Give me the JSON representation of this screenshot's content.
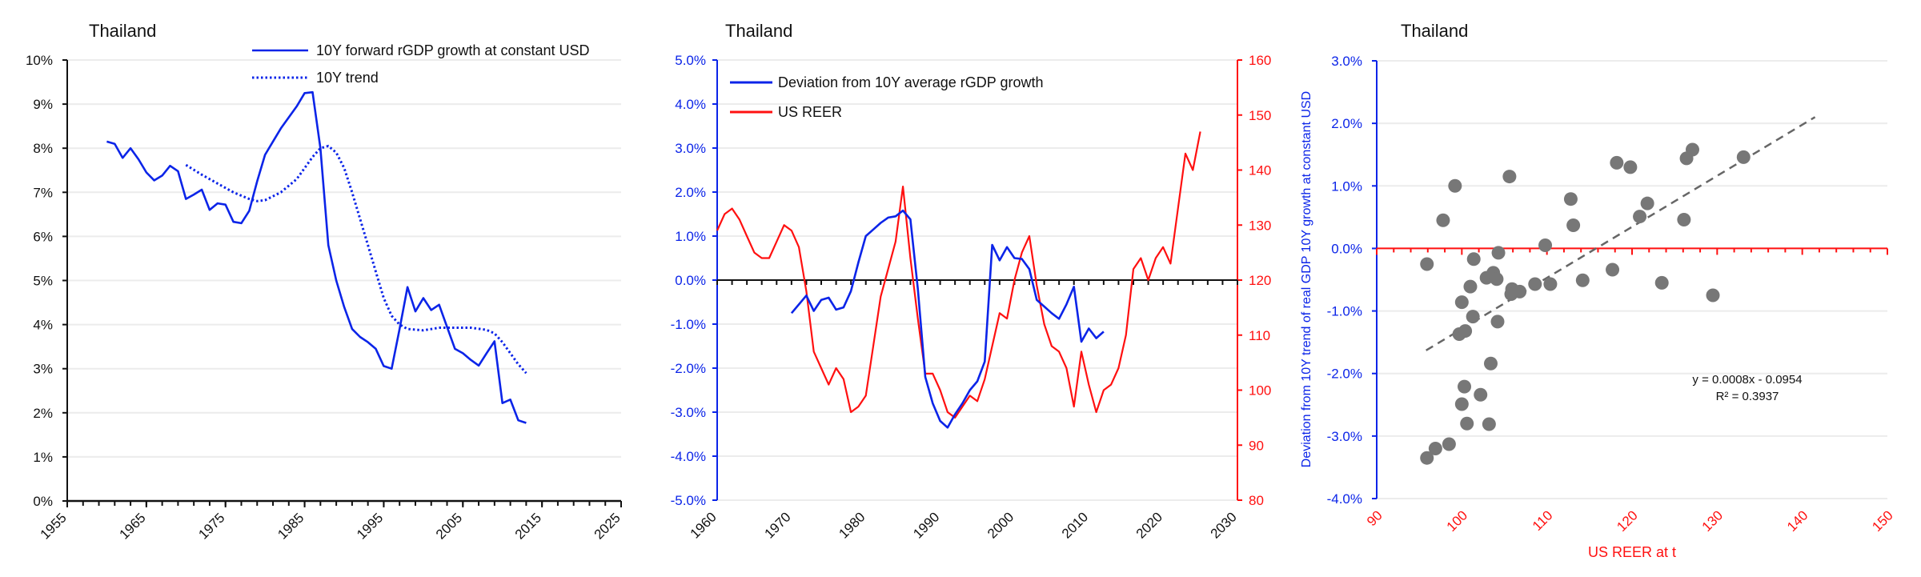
{
  "colors": {
    "blue": "#0b24e8",
    "red": "#ff1010",
    "grey": "#777777",
    "trendline": "#666666"
  },
  "chart_data": [
    {
      "type": "line",
      "title": "Thailand",
      "xlabel": "",
      "ylabel": "",
      "xlim": [
        1955,
        2025
      ],
      "ylim": [
        0,
        10
      ],
      "xticks": [
        "1955",
        "1965",
        "1975",
        "1985",
        "1995",
        "2005",
        "2015",
        "2025"
      ],
      "yticks": [
        "0%",
        "1%",
        "2%",
        "3%",
        "4%",
        "5%",
        "6%",
        "7%",
        "8%",
        "9%",
        "10%"
      ],
      "grid": true,
      "legend_position": "top-right",
      "series": [
        {
          "name": "10Y forward rGDP growth at constant USD",
          "style": "solid",
          "x": [
            1960,
            1961,
            1962,
            1963,
            1964,
            1965,
            1966,
            1967,
            1968,
            1969,
            1970,
            1971,
            1972,
            1973,
            1974,
            1975,
            1976,
            1977,
            1978,
            1979,
            1980,
            1981,
            1982,
            1983,
            1984,
            1985,
            1986,
            1987,
            1988,
            1989,
            1990,
            1991,
            1992,
            1993,
            1994,
            1995,
            1996,
            1997,
            1998,
            1999,
            2000,
            2001,
            2002,
            2003,
            2004,
            2005,
            2006,
            2007,
            2008,
            2009,
            2010,
            2011,
            2012,
            2013
          ],
          "y": [
            8.15,
            8.1,
            7.78,
            8.0,
            7.75,
            7.45,
            7.27,
            7.38,
            7.6,
            7.48,
            6.85,
            6.95,
            7.06,
            6.6,
            6.75,
            6.72,
            6.33,
            6.3,
            6.58,
            7.25,
            7.85,
            8.15,
            8.45,
            8.7,
            8.95,
            9.25,
            9.27,
            8.0,
            5.8,
            5.0,
            4.4,
            3.9,
            3.72,
            3.6,
            3.45,
            3.06,
            3.0,
            3.9,
            4.85,
            4.3,
            4.6,
            4.33,
            4.45,
            3.95,
            3.45,
            3.35,
            3.2,
            3.07,
            3.35,
            3.62,
            2.22,
            2.3,
            1.83,
            1.77
          ]
        },
        {
          "name": "10Y trend",
          "style": "dotted",
          "x": [
            1970,
            1972,
            1974,
            1976,
            1978,
            1979,
            1980,
            1982,
            1984,
            1986,
            1987,
            1988,
            1989,
            1990,
            1991,
            1992,
            1993,
            1994,
            1995,
            1996,
            1997,
            1998,
            2000,
            2002,
            2004,
            2006,
            2008,
            2009,
            2010,
            2011,
            2012,
            2013
          ],
          "y": [
            7.62,
            7.4,
            7.2,
            7.0,
            6.85,
            6.8,
            6.82,
            7.0,
            7.3,
            7.8,
            8.0,
            8.05,
            7.9,
            7.55,
            7.0,
            6.4,
            5.8,
            5.2,
            4.6,
            4.2,
            4.0,
            3.9,
            3.87,
            3.93,
            3.93,
            3.93,
            3.88,
            3.8,
            3.6,
            3.35,
            3.1,
            2.9
          ]
        }
      ]
    },
    {
      "type": "line",
      "title": "Thailand",
      "xlim": [
        1960,
        2030
      ],
      "ylim": [
        -5,
        5
      ],
      "y2lim": [
        80,
        160
      ],
      "xticks": [
        "1960",
        "1970",
        "1980",
        "1990",
        "2000",
        "2010",
        "2020",
        "2030"
      ],
      "yticks": [
        "-5.0%",
        "-4.0%",
        "-3.0%",
        "-2.0%",
        "-1.0%",
        "0.0%",
        "1.0%",
        "2.0%",
        "3.0%",
        "4.0%",
        "5.0%"
      ],
      "y2ticks": [
        "80",
        "90",
        "100",
        "110",
        "120",
        "130",
        "140",
        "150",
        "160"
      ],
      "grid": true,
      "legend_position": "top-left",
      "series": [
        {
          "name": "Deviation from 10Y average rGDP growth",
          "axis": "left",
          "x": [
            1970,
            1972,
            1973,
            1974,
            1975,
            1976,
            1977,
            1978,
            1979,
            1980,
            1981,
            1982,
            1983,
            1984,
            1985,
            1986,
            1987,
            1988,
            1989,
            1990,
            1991,
            1992,
            1993,
            1994,
            1995,
            1996,
            1997,
            1998,
            1999,
            2000,
            2001,
            2002,
            2003,
            2004,
            2005,
            2006,
            2007,
            2008,
            2009,
            2010,
            2011,
            2012
          ],
          "y": [
            -0.75,
            -0.35,
            -0.7,
            -0.45,
            -0.4,
            -0.67,
            -0.62,
            -0.25,
            0.4,
            1.0,
            1.15,
            1.3,
            1.42,
            1.45,
            1.58,
            1.38,
            -0.2,
            -2.2,
            -2.8,
            -3.2,
            -3.35,
            -3.05,
            -2.8,
            -2.5,
            -2.3,
            -1.85,
            0.8,
            0.45,
            0.75,
            0.5,
            0.48,
            0.25,
            -0.45,
            -0.6,
            -0.75,
            -0.88,
            -0.55,
            -0.15,
            -1.4,
            -1.1,
            -1.32,
            -1.17
          ]
        },
        {
          "name": "US REER",
          "axis": "right",
          "x": [
            1960,
            1961,
            1962,
            1963,
            1964,
            1965,
            1966,
            1967,
            1968,
            1969,
            1970,
            1971,
            1972,
            1973,
            1974,
            1975,
            1976,
            1977,
            1978,
            1979,
            1980,
            1981,
            1982,
            1983,
            1984,
            1985,
            1986,
            1987,
            1988,
            1989,
            1990,
            1991,
            1992,
            1993,
            1994,
            1995,
            1996,
            1997,
            1998,
            1999,
            2000,
            2001,
            2002,
            2003,
            2004,
            2005,
            2006,
            2007,
            2008,
            2009,
            2010,
            2011,
            2012,
            2013,
            2014,
            2015,
            2016,
            2017,
            2018,
            2019,
            2020,
            2021,
            2022,
            2023,
            2024,
            2025
          ],
          "y": [
            129,
            132,
            133,
            131,
            128,
            125,
            124,
            124,
            127,
            130,
            129,
            126,
            118,
            107,
            104,
            101,
            104,
            102,
            96,
            97,
            99,
            108,
            117,
            122,
            127,
            137,
            124,
            113,
            103,
            103,
            100,
            96,
            95,
            97,
            99,
            98,
            102,
            108,
            114,
            113,
            120,
            125,
            128,
            119,
            112,
            108,
            107,
            104,
            97,
            107,
            101,
            96,
            100,
            101,
            104,
            110,
            122,
            124,
            120,
            124,
            126,
            123,
            133,
            143,
            140,
            147
          ]
        }
      ]
    },
    {
      "type": "scatter",
      "title": "Thailand",
      "xlabel": "US REER at t",
      "ylabel": "Deviation from 10Y trend of real GDP 10Y growth at constant USD",
      "xlim": [
        90,
        150
      ],
      "ylim": [
        -4,
        3
      ],
      "xticks": [
        "90",
        "100",
        "110",
        "120",
        "130",
        "140",
        "150"
      ],
      "yticks": [
        "-4.0%",
        "-3.0%",
        "-2.0%",
        "-1.0%",
        "0.0%",
        "1.0%",
        "2.0%",
        "3.0%"
      ],
      "grid": true,
      "trendline": {
        "equation": "y = 0.0008x - 0.0954",
        "r2": "R² = 0.3937",
        "x": [
          95.8,
          141.5
        ],
        "y": [
          -1.63,
          2.1
        ]
      },
      "points": [
        [
          95.9,
          -0.25
        ],
        [
          97.8,
          0.45
        ],
        [
          99.2,
          1.0
        ],
        [
          105.6,
          1.15
        ],
        [
          101.4,
          -0.17
        ],
        [
          101.0,
          -0.61
        ],
        [
          100.0,
          -0.86
        ],
        [
          101.3,
          -1.09
        ],
        [
          99.7,
          -1.37
        ],
        [
          100.4,
          -1.32
        ],
        [
          102.9,
          -0.47
        ],
        [
          103.7,
          -0.39
        ],
        [
          104.1,
          -0.49
        ],
        [
          104.3,
          -0.07
        ],
        [
          104.2,
          -1.17
        ],
        [
          103.4,
          -1.84
        ],
        [
          100.3,
          -2.21
        ],
        [
          100.0,
          -2.49
        ],
        [
          102.2,
          -2.34
        ],
        [
          100.6,
          -2.8
        ],
        [
          103.2,
          -2.81
        ],
        [
          98.5,
          -3.13
        ],
        [
          96.9,
          -3.2
        ],
        [
          95.9,
          -3.35
        ],
        [
          105.9,
          -0.65
        ],
        [
          105.8,
          -0.73
        ],
        [
          106.8,
          -0.69
        ],
        [
          108.6,
          -0.57
        ],
        [
          109.8,
          0.05
        ],
        [
          110.4,
          -0.57
        ],
        [
          112.8,
          0.79
        ],
        [
          113.1,
          0.37
        ],
        [
          114.2,
          -0.51
        ],
        [
          117.7,
          -0.34
        ],
        [
          118.2,
          1.37
        ],
        [
          119.8,
          1.3
        ],
        [
          120.9,
          0.51
        ],
        [
          121.8,
          0.72
        ],
        [
          123.5,
          -0.55
        ],
        [
          126.1,
          0.46
        ],
        [
          126.4,
          1.44
        ],
        [
          127.1,
          1.58
        ],
        [
          129.5,
          -0.75
        ],
        [
          133.1,
          1.46
        ]
      ]
    }
  ]
}
